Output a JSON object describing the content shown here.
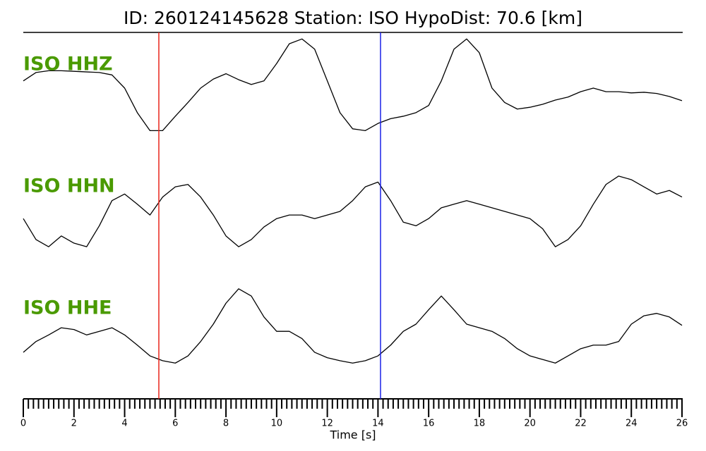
{
  "chart_data": {
    "type": "line",
    "title": "ID: 260124145628   Station: ISO   HypoDist:    70.6 [km]",
    "xlabel": "Time [s]",
    "xlim": [
      0,
      26
    ],
    "xticks": [
      0,
      2,
      4,
      6,
      8,
      10,
      12,
      14,
      16,
      18,
      20,
      22,
      24,
      26
    ],
    "xminorticks": [
      0.2,
      0.4,
      0.6,
      0.8,
      1,
      1.2,
      1.4,
      1.6,
      1.8,
      2.2,
      2.4,
      2.6,
      2.8,
      3,
      3.2,
      3.4,
      3.6,
      3.8,
      4.2,
      4.4,
      4.6,
      4.8,
      5,
      5.2,
      5.4,
      5.6,
      5.8,
      6.2,
      6.4,
      6.6,
      6.8,
      7,
      7.2,
      7.4,
      7.6,
      7.8,
      8.2,
      8.4,
      8.6,
      8.8,
      9,
      9.2,
      9.4,
      9.6,
      9.8,
      10.2,
      10.4,
      10.6,
      10.8,
      11,
      11.2,
      11.4,
      11.6,
      11.8,
      12.2,
      12.4,
      12.6,
      12.8,
      13,
      13.2,
      13.4,
      13.6,
      13.8,
      14.2,
      14.4,
      14.6,
      14.8,
      15,
      15.2,
      15.4,
      15.6,
      15.8,
      16.2,
      16.4,
      16.6,
      16.8,
      17,
      17.2,
      17.4,
      17.6,
      17.8,
      18.2,
      18.4,
      18.6,
      18.8,
      19,
      19.2,
      19.4,
      19.6,
      19.8,
      20.2,
      20.4,
      20.6,
      20.8,
      21,
      21.2,
      21.4,
      21.6,
      21.8,
      22.2,
      22.4,
      22.6,
      22.8,
      23,
      23.2,
      23.4,
      23.6,
      23.8,
      24.2,
      24.4,
      24.6,
      24.8,
      25,
      25.2,
      25.4,
      25.6,
      25.8
    ],
    "ylim": [
      -1,
      1
    ],
    "label_color": "#4a9a00",
    "markers": [
      {
        "x": 5.35,
        "color": "#e8251c"
      },
      {
        "x": 14.1,
        "color": "#1c22e8"
      }
    ],
    "x": [
      0,
      0.5,
      1,
      1.5,
      2,
      2.5,
      3,
      3.5,
      4,
      4.5,
      5,
      5.5,
      6,
      6.5,
      7,
      7.5,
      8,
      8.5,
      9,
      9.5,
      10,
      10.5,
      11,
      11.5,
      12,
      12.5,
      13,
      13.5,
      14,
      14.5,
      15,
      15.5,
      16,
      16.5,
      17,
      17.5,
      18,
      18.5,
      19,
      19.5,
      20,
      20.5,
      21,
      21.5,
      22,
      22.5,
      23,
      23.5,
      24,
      24.5,
      25,
      25.5,
      26
    ],
    "series": [
      {
        "name": "ISO HHZ",
        "color": "#000000",
        "values": [
          0.12,
          0.26,
          0.29,
          0.29,
          0.28,
          0.27,
          0.26,
          0.22,
          0,
          -0.41,
          -0.71,
          -0.71,
          -0.47,
          -0.24,
          0,
          0.15,
          0.24,
          0.14,
          0.06,
          0.12,
          0.41,
          0.74,
          0.82,
          0.65,
          0.12,
          -0.41,
          -0.68,
          -0.71,
          -0.59,
          -0.51,
          -0.47,
          -0.41,
          -0.29,
          0.12,
          0.65,
          0.82,
          0.59,
          0,
          -0.24,
          -0.35,
          -0.32,
          -0.27,
          -0.2,
          -0.15,
          -0.06,
          0,
          -0.06,
          -0.06,
          -0.08,
          -0.07,
          -0.09,
          -0.14,
          -0.21
        ]
      },
      {
        "name": "ISO HHN",
        "color": "#000000",
        "values": [
          -0.12,
          -0.47,
          -0.59,
          -0.41,
          -0.53,
          -0.59,
          -0.24,
          0.18,
          0.29,
          0.12,
          -0.06,
          0.24,
          0.41,
          0.45,
          0.24,
          -0.06,
          -0.41,
          -0.59,
          -0.47,
          -0.26,
          -0.12,
          -0.06,
          -0.06,
          -0.12,
          -0.06,
          0,
          0.18,
          0.41,
          0.49,
          0.18,
          -0.18,
          -0.24,
          -0.12,
          0.06,
          0.12,
          0.18,
          0.12,
          0.06,
          0,
          -0.06,
          -0.12,
          -0.29,
          -0.59,
          -0.47,
          -0.24,
          0.12,
          0.45,
          0.59,
          0.53,
          0.41,
          0.29,
          0.35,
          0.24
        ]
      },
      {
        "name": "ISO HHE",
        "color": "#000000",
        "values": [
          -0.47,
          -0.29,
          -0.18,
          -0.06,
          -0.09,
          -0.18,
          -0.12,
          -0.06,
          -0.18,
          -0.35,
          -0.53,
          -0.61,
          -0.65,
          -0.53,
          -0.29,
          0,
          0.35,
          0.59,
          0.47,
          0.12,
          -0.12,
          -0.12,
          -0.24,
          -0.47,
          -0.56,
          -0.61,
          -0.65,
          -0.61,
          -0.53,
          -0.35,
          -0.12,
          0,
          0.24,
          0.47,
          0.24,
          0,
          -0.06,
          -0.12,
          -0.24,
          -0.41,
          -0.53,
          -0.59,
          -0.65,
          -0.53,
          -0.41,
          -0.35,
          -0.35,
          -0.29,
          0,
          0.14,
          0.18,
          0.12,
          -0.02
        ]
      }
    ]
  }
}
